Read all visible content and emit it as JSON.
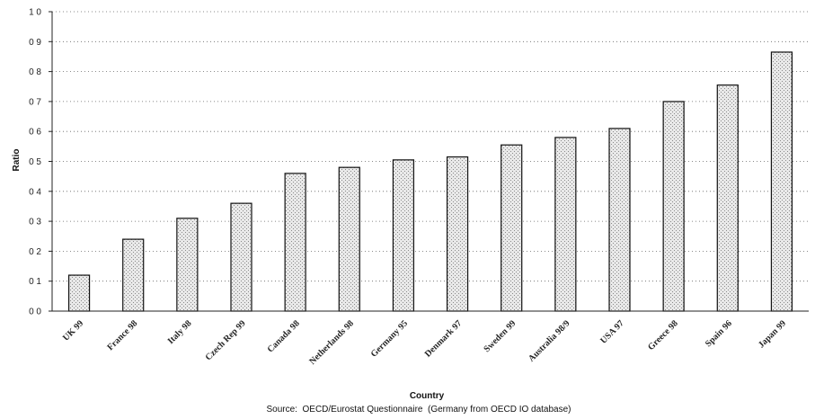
{
  "chart_data": {
    "type": "bar",
    "title": "",
    "xlabel": "Country",
    "ylabel": "Ratio",
    "source": "Source:  OECD/Eurostat Questionnaire  (Germany from OECD IO database)",
    "categories": [
      "UK 99",
      "France 98",
      "Italy 98",
      "Czech Rep 99",
      "Canada 98",
      "Netherlands 98",
      "Germany 95",
      "Denmark 97",
      "Sweden 99",
      "Australia 98/9",
      "USA 97",
      "Greece 98",
      "Spain 96",
      "Japan 99"
    ],
    "values": [
      0.12,
      0.24,
      0.31,
      0.36,
      0.46,
      0.48,
      0.505,
      0.515,
      0.555,
      0.58,
      0.61,
      0.7,
      0.755,
      0.865
    ],
    "ylim": [
      0,
      1.0
    ],
    "yticks": [
      "0 0",
      "0 1",
      "0 2",
      "0 3",
      "0 4",
      "0 5",
      "0 6",
      "0 7",
      "0 8",
      "0 9",
      "1 0"
    ],
    "grid": true,
    "bar_color": "#d0d0d0"
  }
}
